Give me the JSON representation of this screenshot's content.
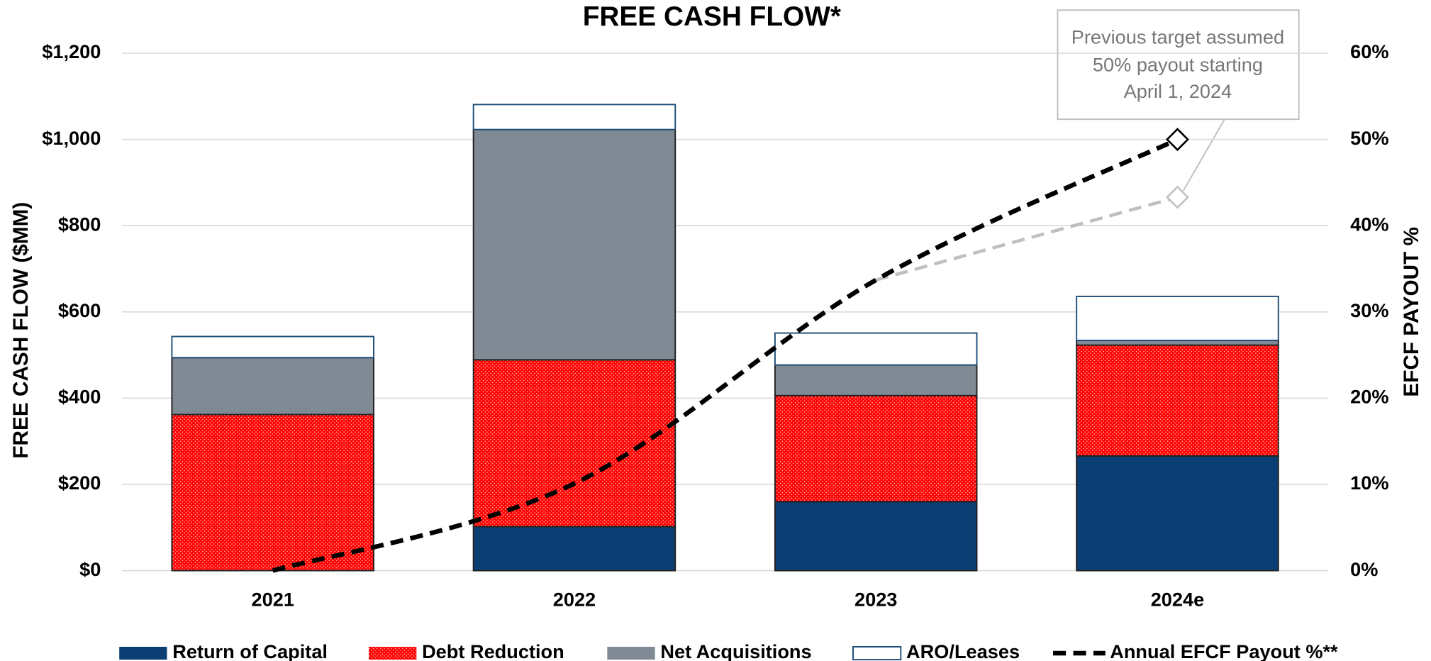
{
  "chart_data": {
    "type": "bar",
    "title": "FREE CASH FLOW*",
    "y_label": "FREE CASH FLOW ($MM)",
    "y2_label": "EFCF PAYOUT %",
    "categories": [
      "2021",
      "2022",
      "2023",
      "2024e"
    ],
    "stacked": true,
    "series": [
      {
        "name": "Return of Capital",
        "color": "#0b3f73",
        "values": [
          0,
          102,
          160,
          266
        ]
      },
      {
        "name": "Debt Reduction",
        "color": "#ff0000",
        "values": [
          362,
          387,
          246,
          257
        ]
      },
      {
        "name": "Net Acquisitions",
        "color": "#808a94",
        "values": [
          132,
          534,
          71,
          11
        ]
      },
      {
        "name": "ARO/Leases",
        "color": "#ffffff",
        "values": [
          49,
          58,
          74,
          102
        ]
      },
      {
        "name": "Annual EFCF Payout %**",
        "type": "line",
        "axis": "y2",
        "color": "#000000",
        "values": [
          0,
          10.1,
          33.7,
          50
        ]
      }
    ],
    "previous_target": {
      "color": "#bfbfbf",
      "axis": "y2",
      "values": [
        null,
        null,
        33.7,
        43.3
      ]
    },
    "annotation": [
      "Previous target assumed",
      "50% payout starting",
      "April 1, 2024"
    ],
    "ylim": [
      0,
      1200
    ],
    "yticks": [
      {
        "value": 0,
        "label": "$0"
      },
      {
        "value": 200,
        "label": "$200"
      },
      {
        "value": 400,
        "label": "$400"
      },
      {
        "value": 600,
        "label": "$600"
      },
      {
        "value": 800,
        "label": "$800"
      },
      {
        "value": 1000,
        "label": "$1,000"
      },
      {
        "value": 1200,
        "label": "$1,200"
      }
    ],
    "y2lim": [
      0,
      60
    ],
    "y2ticks": [
      {
        "value": 0,
        "label": "0%"
      },
      {
        "value": 10,
        "label": "10%"
      },
      {
        "value": 20,
        "label": "20%"
      },
      {
        "value": 30,
        "label": "30%"
      },
      {
        "value": 40,
        "label": "40%"
      },
      {
        "value": 50,
        "label": "50%"
      },
      {
        "value": 60,
        "label": "60%"
      }
    ],
    "grid": true,
    "legend": "bottom"
  }
}
